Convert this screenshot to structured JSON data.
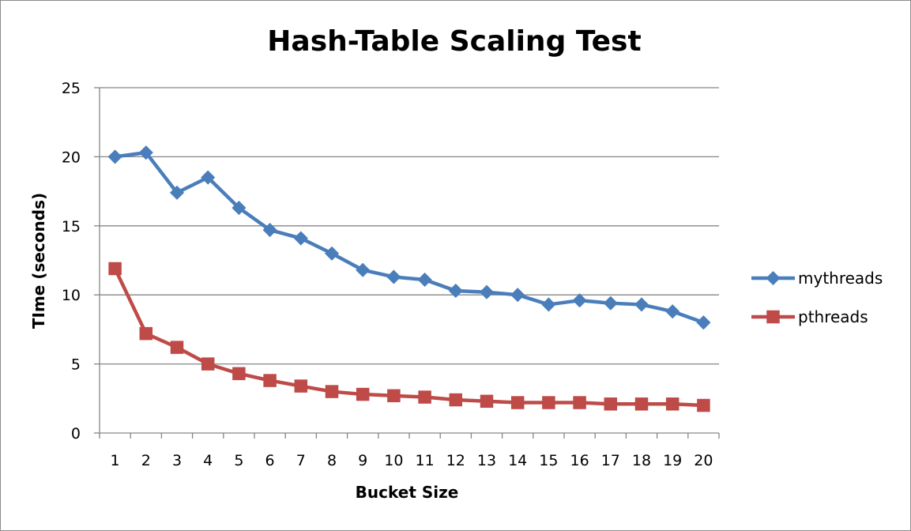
{
  "chart_data": {
    "type": "line",
    "title": "Hash-Table Scaling Test",
    "xlabel": "Bucket Size",
    "ylabel": "TIme (seconds)",
    "categories": [
      "1",
      "2",
      "3",
      "4",
      "5",
      "6",
      "7",
      "8",
      "9",
      "10",
      "11",
      "12",
      "13",
      "14",
      "15",
      "16",
      "17",
      "18",
      "19",
      "20"
    ],
    "yticks": [
      "0",
      "5",
      "10",
      "15",
      "20",
      "25"
    ],
    "ylim": [
      0,
      25
    ],
    "grid": true,
    "legend_position": "right",
    "series": [
      {
        "name": "mythreads",
        "color": "#4a7ebb",
        "marker": "diamond",
        "values": [
          20.0,
          20.3,
          17.4,
          18.5,
          16.3,
          14.7,
          14.1,
          13.0,
          11.8,
          11.3,
          11.1,
          10.3,
          10.2,
          10.0,
          9.3,
          9.6,
          9.4,
          9.3,
          8.8,
          8.0
        ]
      },
      {
        "name": "pthreads",
        "color": "#be4b48",
        "marker": "square",
        "values": [
          11.9,
          7.2,
          6.2,
          5.0,
          4.3,
          3.8,
          3.4,
          3.0,
          2.8,
          2.7,
          2.6,
          2.4,
          2.3,
          2.2,
          2.2,
          2.2,
          2.1,
          2.1,
          2.1,
          2.0
        ]
      }
    ]
  }
}
